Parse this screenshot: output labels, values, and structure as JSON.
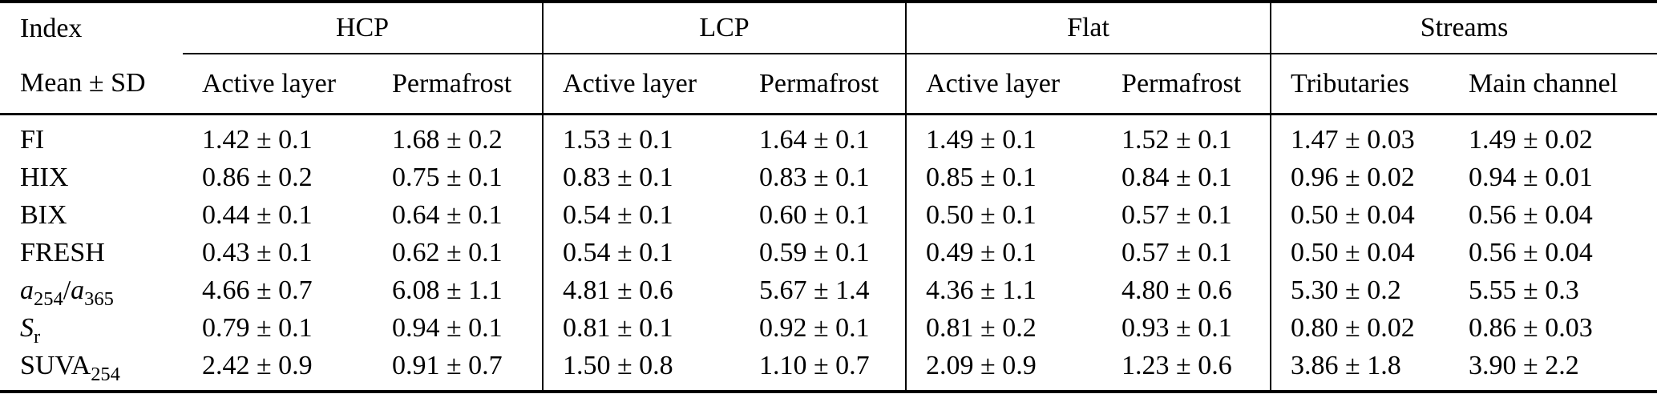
{
  "table": {
    "corner": {
      "line1": "Index",
      "line2": "Mean ± SD"
    },
    "groups": [
      {
        "label": "HCP",
        "columns": [
          "Active layer",
          "Permafrost"
        ]
      },
      {
        "label": "LCP",
        "columns": [
          "Active layer",
          "Permafrost"
        ]
      },
      {
        "label": "Flat",
        "columns": [
          "Active layer",
          "Permafrost"
        ]
      },
      {
        "label": "Streams",
        "columns": [
          "Tributaries",
          "Main channel"
        ]
      }
    ],
    "rows": [
      {
        "index": [
          {
            "t": "FI"
          }
        ],
        "values": [
          "1.42 ± 0.1",
          "1.68 ± 0.2",
          "1.53 ± 0.1",
          "1.64 ± 0.1",
          "1.49 ± 0.1",
          "1.52 ± 0.1",
          "1.47 ± 0.03",
          "1.49 ± 0.02"
        ]
      },
      {
        "index": [
          {
            "t": "HIX"
          }
        ],
        "values": [
          "0.86 ± 0.2",
          "0.75 ± 0.1",
          "0.83 ± 0.1",
          "0.83 ± 0.1",
          "0.85 ± 0.1",
          "0.84 ± 0.1",
          "0.96 ± 0.02",
          "0.94 ± 0.01"
        ]
      },
      {
        "index": [
          {
            "t": "BIX"
          }
        ],
        "values": [
          "0.44 ± 0.1",
          "0.64 ± 0.1",
          "0.54 ± 0.1",
          "0.60 ± 0.1",
          "0.50 ± 0.1",
          "0.57 ± 0.1",
          "0.50 ± 0.04",
          "0.56 ± 0.04"
        ]
      },
      {
        "index": [
          {
            "t": "FRESH"
          }
        ],
        "values": [
          "0.43 ± 0.1",
          "0.62 ± 0.1",
          "0.54 ± 0.1",
          "0.59 ± 0.1",
          "0.49 ± 0.1",
          "0.57 ± 0.1",
          "0.50 ± 0.04",
          "0.56 ± 0.04"
        ]
      },
      {
        "index": [
          {
            "t": "a",
            "k": "i"
          },
          {
            "t": "254",
            "k": "s"
          },
          {
            "t": "/"
          },
          {
            "t": "a",
            "k": "i"
          },
          {
            "t": "365",
            "k": "s"
          }
        ],
        "values": [
          "4.66 ± 0.7",
          "6.08 ± 1.1",
          "4.81 ± 0.6",
          "5.67 ± 1.4",
          "4.36 ± 1.1",
          "4.80 ± 0.6",
          "5.30 ± 0.2",
          "5.55 ± 0.3"
        ]
      },
      {
        "index": [
          {
            "t": "S",
            "k": "i"
          },
          {
            "t": "r",
            "k": "s"
          }
        ],
        "values": [
          "0.79 ± 0.1",
          "0.94 ± 0.1",
          "0.81 ± 0.1",
          "0.92 ± 0.1",
          "0.81 ± 0.2",
          "0.93 ± 0.1",
          "0.80 ± 0.02",
          "0.86 ± 0.03"
        ]
      },
      {
        "index": [
          {
            "t": "SUVA"
          },
          {
            "t": "254",
            "k": "s"
          }
        ],
        "values": [
          "2.42 ± 0.9",
          "0.91 ± 0.7",
          "1.50 ± 0.8",
          "1.10 ± 0.7",
          "2.09 ± 0.9",
          "1.23 ± 0.6",
          "3.86 ± 1.8",
          "3.90 ± 2.2"
        ]
      }
    ]
  }
}
